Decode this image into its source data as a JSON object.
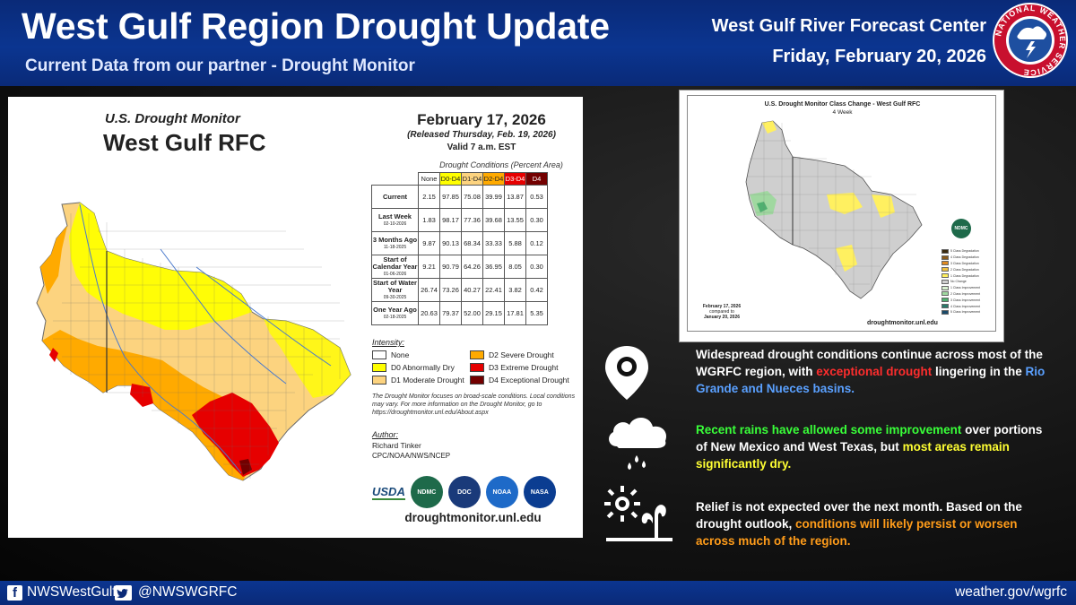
{
  "header": {
    "title": "West Gulf Region Drought Update",
    "subtitle": "Current Data from our partner - Drought Monitor",
    "center_name": "West Gulf River Forecast Center",
    "date": "Friday, February 20, 2026",
    "logo_text": "NATIONAL WEATHER SERVICE"
  },
  "usdm": {
    "title": "U.S. Drought Monitor",
    "region": "West Gulf RFC",
    "date": "February 17, 2026",
    "released": "(Released Thursday, Feb. 19, 2026)",
    "valid": "Valid 7 a.m. EST",
    "table_caption": "Drought Conditions (Percent Area)",
    "columns": [
      "None",
      "D0-D4",
      "D1-D4",
      "D2-D4",
      "D3-D4",
      "D4"
    ],
    "rows": [
      {
        "label": "Current",
        "sub": "",
        "values": [
          "2.15",
          "97.85",
          "75.08",
          "39.99",
          "13.87",
          "0.53"
        ]
      },
      {
        "label": "Last Week",
        "sub": "02-10-2026",
        "values": [
          "1.83",
          "98.17",
          "77.36",
          "39.68",
          "13.55",
          "0.30"
        ]
      },
      {
        "label": "3 Months Ago",
        "sub": "11-18-2025",
        "values": [
          "9.87",
          "90.13",
          "68.34",
          "33.33",
          "5.88",
          "0.12"
        ]
      },
      {
        "label": "Start of Calendar Year",
        "sub": "01-06-2026",
        "values": [
          "9.21",
          "90.79",
          "64.26",
          "36.95",
          "8.05",
          "0.30"
        ]
      },
      {
        "label": "Start of Water Year",
        "sub": "09-30-2025",
        "values": [
          "26.74",
          "73.26",
          "40.27",
          "22.41",
          "3.82",
          "0.42"
        ]
      },
      {
        "label": "One Year Ago",
        "sub": "02-18-2025",
        "values": [
          "20.63",
          "79.37",
          "52.00",
          "29.15",
          "17.81",
          "5.35"
        ]
      }
    ],
    "intensity_title": "Intensity:",
    "intensity": [
      {
        "label": "None",
        "color": "#ffffff"
      },
      {
        "label": "D0 Abnormally Dry",
        "color": "#ffff00"
      },
      {
        "label": "D1 Moderate Drought",
        "color": "#fcd37f"
      },
      {
        "label": "D2 Severe Drought",
        "color": "#ffaa00"
      },
      {
        "label": "D3 Extreme Drought",
        "color": "#e60000"
      },
      {
        "label": "D4 Exceptional Drought",
        "color": "#730000"
      }
    ],
    "note": "The Drought Monitor focuses on broad-scale conditions. Local conditions may vary. For more information on the Drought Monitor, go to https://droughtmonitor.unl.edu/About.aspx",
    "author_label": "Author:",
    "author_name": "Richard Tinker",
    "author_org": "CPC/NOAA/NWS/NCEP",
    "logos": [
      "USDA",
      "NDMC",
      "DOC",
      "NOAA",
      "NASA"
    ],
    "url": "droughtmonitor.unl.edu"
  },
  "class_change": {
    "title": "U.S. Drought Monitor Class Change - West Gulf RFC",
    "subtitle": "4 Week",
    "compare_date": "February 17, 2026",
    "compare_mid": "compared to",
    "compare_to": "January 20, 2026",
    "url": "droughtmonitor.unl.edu",
    "badge": "NDMC",
    "legend": [
      {
        "label": "5 Class Degradation",
        "color": "#3a2a10"
      },
      {
        "label": "4 Class Degradation",
        "color": "#8a5a1a"
      },
      {
        "label": "3 Class Degradation",
        "color": "#e08a20"
      },
      {
        "label": "2 Class Degradation",
        "color": "#f0c040"
      },
      {
        "label": "1 Class Degradation",
        "color": "#fff060"
      },
      {
        "label": "No Change",
        "color": "#d0d0d0"
      },
      {
        "label": "1 Class Improvement",
        "color": "#d8f0d0"
      },
      {
        "label": "2 Class Improvement",
        "color": "#a0d8a0"
      },
      {
        "label": "3 Class Improvement",
        "color": "#50b070"
      },
      {
        "label": "4 Class Improvement",
        "color": "#2a7a6a"
      },
      {
        "label": "5 Class Improvement",
        "color": "#1a4a6a"
      }
    ]
  },
  "bullets": {
    "b1": {
      "p1": "Widespread drought conditions continue across most of the WGRFC region, with ",
      "p2": "exceptional drought",
      "p3": " lingering in the ",
      "p4": "Rio Grande and Nueces basins."
    },
    "b2": {
      "p1": "Recent rains have allowed some improvement",
      "p2": " over portions of New Mexico and West Texas, but ",
      "p3": "most areas remain significantly dry."
    },
    "b3": {
      "p1": "Relief is not expected over the next month. Based on the drought outlook, ",
      "p2": "conditions will likely persist or worsen across much of the region."
    }
  },
  "footer": {
    "facebook": "NWSWestGulf",
    "twitter": "@NWSWGRFC",
    "website": "weather.gov/wgrfc"
  }
}
